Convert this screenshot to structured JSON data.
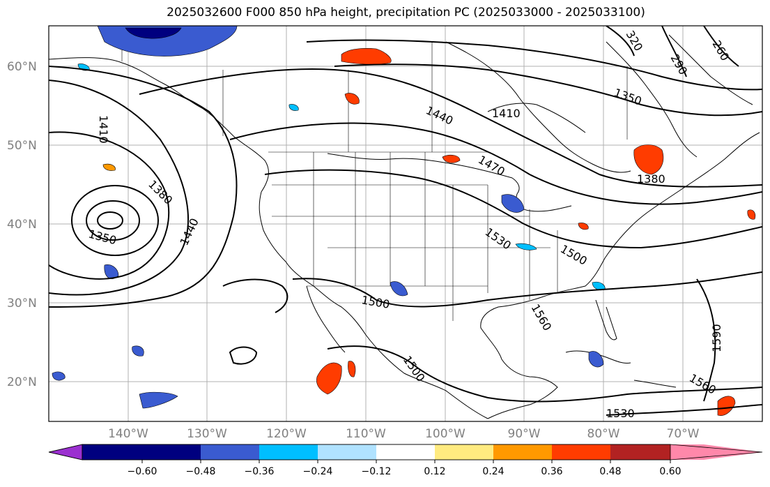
{
  "title": "2025032600 F000 850 hPa height, precipitation PC (2025033000 - 2025033100)",
  "lat_labels": [
    "60°N",
    "50°N",
    "40°N",
    "30°N",
    "20°N"
  ],
  "lon_labels": [
    "140°W",
    "130°W",
    "120°W",
    "110°W",
    "100°W",
    "90°W",
    "80°W",
    "70°W"
  ],
  "contour_labels": [
    {
      "text": "1410",
      "rot": 90
    },
    {
      "text": "1380",
      "rot": 45
    },
    {
      "text": "1440",
      "rot": -65
    },
    {
      "text": "1350",
      "rot": 15
    },
    {
      "text": "1410",
      "rot": 0
    },
    {
      "text": "1440",
      "rot": 25
    },
    {
      "text": "1470",
      "rot": 30
    },
    {
      "text": "1350",
      "rot": 20
    },
    {
      "text": "1380",
      "rot": 0
    },
    {
      "text": "1530",
      "rot": 35
    },
    {
      "text": "1500",
      "rot": 30
    },
    {
      "text": "1500",
      "rot": 10
    },
    {
      "text": "1560",
      "rot": 60
    },
    {
      "text": "1500",
      "rot": 55
    },
    {
      "text": "1590",
      "rot": -90
    },
    {
      "text": "1560",
      "rot": 30
    },
    {
      "text": "1530",
      "rot": 0
    },
    {
      "text": "320",
      "rot": 60
    },
    {
      "text": "290",
      "rot": 60
    },
    {
      "text": "260",
      "rot": 60
    }
  ],
  "colorbar": {
    "ticks": [
      "−0.60",
      "−0.48",
      "−0.36",
      "−0.24",
      "−0.12",
      "0.12",
      "0.24",
      "0.36",
      "0.48",
      "0.60"
    ],
    "colors": [
      "#9b30d0",
      "#00007f",
      "#3a5bd0",
      "#00bfff",
      "#b0e2ff",
      "#ffffff",
      "#ffeb80",
      "#ff9900",
      "#ff3c00",
      "#b22222",
      "#ff88aa"
    ]
  },
  "colors": {
    "blue_dark": "#00007f",
    "blue_mid": "#3a5bd0",
    "cyan": "#00bfff",
    "orange": "#ff9900",
    "red_orange": "#ff3c00",
    "yellow": "#ffeb80"
  }
}
